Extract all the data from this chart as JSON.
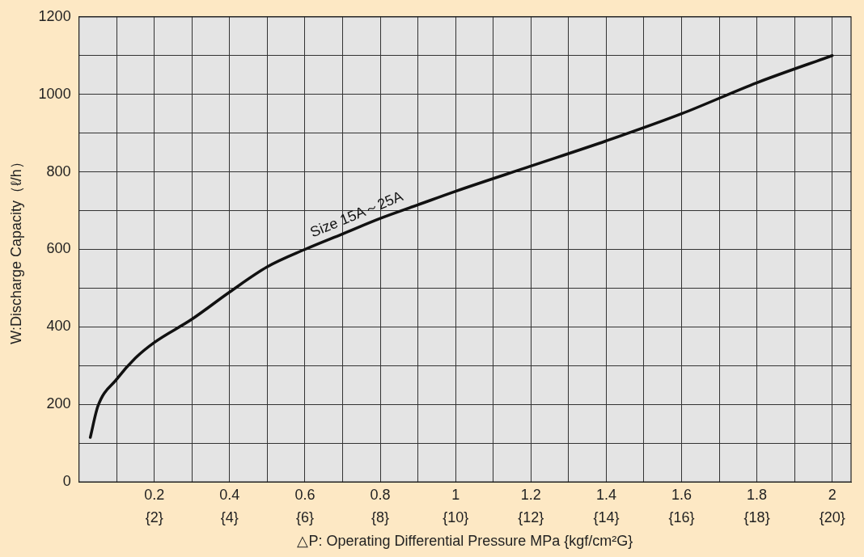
{
  "chart_data": {
    "type": "line",
    "xlabel": "△P: Operating Differential Pressure MPa {kgf/cm²G}",
    "ylabel": "W:Discharge Capacity（ℓ/h）",
    "xlim": [
      0,
      2.05
    ],
    "ylim": [
      0,
      1200
    ],
    "xticks": [
      {
        "value": 0,
        "label": null
      },
      {
        "value": 0.1,
        "label": null
      },
      0.2,
      {
        "value": 0.3,
        "label": null
      },
      0.4,
      {
        "value": 0.5,
        "label": null
      },
      0.6,
      {
        "value": 0.7,
        "label": null
      },
      0.8,
      {
        "value": 0.9,
        "label": null
      },
      1,
      {
        "value": 1.1,
        "label": null
      },
      1.2,
      {
        "value": 1.3,
        "label": null
      },
      1.4,
      {
        "value": 1.5,
        "label": null
      },
      1.6,
      {
        "value": 1.7,
        "label": null
      },
      1.8,
      {
        "value": 1.9,
        "label": null
      },
      2
    ],
    "x2lim": [
      0,
      20.5
    ],
    "x2ticks": [
      {
        "value": 2,
        "label": "{2}"
      },
      {
        "value": 4,
        "label": "{4}"
      },
      {
        "value": 6,
        "label": "{6}"
      },
      {
        "value": 8,
        "label": "{8}"
      },
      {
        "value": 10,
        "label": "{10}"
      },
      {
        "value": 12,
        "label": "{12}"
      },
      {
        "value": 14,
        "label": "{14}"
      },
      {
        "value": 16,
        "label": "{16}"
      },
      {
        "value": 18,
        "label": "{18}"
      },
      {
        "value": 20,
        "label": "{20}"
      }
    ],
    "yticks": [
      0,
      {
        "value": 100,
        "label": null
      },
      200,
      {
        "value": 300,
        "label": null
      },
      400,
      {
        "value": 500,
        "label": null
      },
      600,
      {
        "value": 700,
        "label": null
      },
      800,
      {
        "value": 900,
        "label": null
      },
      1000,
      {
        "value": 1100,
        "label": null
      },
      1200
    ],
    "grid": true,
    "legend": false,
    "marker": "none",
    "line_style": "solid",
    "series": [
      {
        "name": "Size 15A～25A",
        "color": "#111111",
        "x": [
          0.03,
          0.05,
          0.1,
          0.15,
          0.2,
          0.3,
          0.4,
          0.5,
          0.6,
          0.7,
          0.8,
          0.9,
          1.0,
          1.2,
          1.4,
          1.6,
          1.8,
          2.0
        ],
        "values": [
          115,
          195,
          265,
          320,
          360,
          420,
          490,
          555,
          600,
          640,
          680,
          715,
          750,
          815,
          880,
          950,
          1030,
          1100
        ]
      }
    ]
  }
}
